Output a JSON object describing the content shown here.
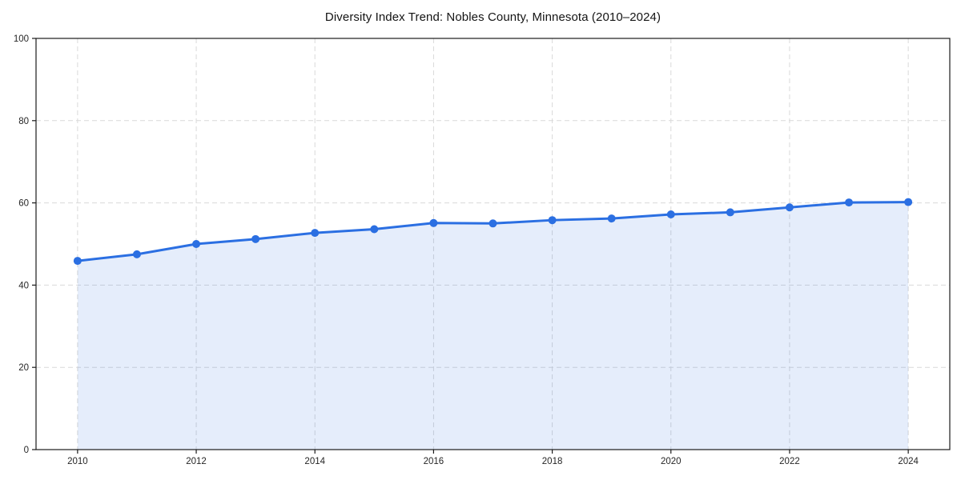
{
  "chart_data": {
    "type": "line",
    "title": "Diversity Index Trend: Nobles County, Minnesota (2010–2024)",
    "x": [
      2010,
      2011,
      2012,
      2013,
      2014,
      2015,
      2016,
      2017,
      2018,
      2019,
      2020,
      2021,
      2022,
      2023,
      2024
    ],
    "series": [
      {
        "name": "Diversity Index",
        "values": [
          45.9,
          47.5,
          50.0,
          51.2,
          52.7,
          53.6,
          55.1,
          55.0,
          55.8,
          56.2,
          57.2,
          57.7,
          58.9,
          60.1,
          60.2
        ]
      }
    ],
    "xlabel": "",
    "ylabel": "",
    "xlim": [
      2009.3,
      2024.7
    ],
    "ylim": [
      0,
      100
    ],
    "xticks": [
      2010,
      2012,
      2014,
      2016,
      2018,
      2020,
      2022,
      2024
    ],
    "yticks": [
      0,
      20,
      40,
      60,
      80,
      100
    ],
    "grid": "dashed",
    "legend": "none",
    "colors": {
      "line": "#2b6fe2",
      "marker": "#2b6fe2",
      "fill": "#2b6fe2",
      "fill_opacity": 0.12,
      "grid": "#d9d9d9",
      "axis": "#1a1a1a",
      "tick_label": "#262626",
      "title": "#141414",
      "background": "#ffffff"
    }
  }
}
